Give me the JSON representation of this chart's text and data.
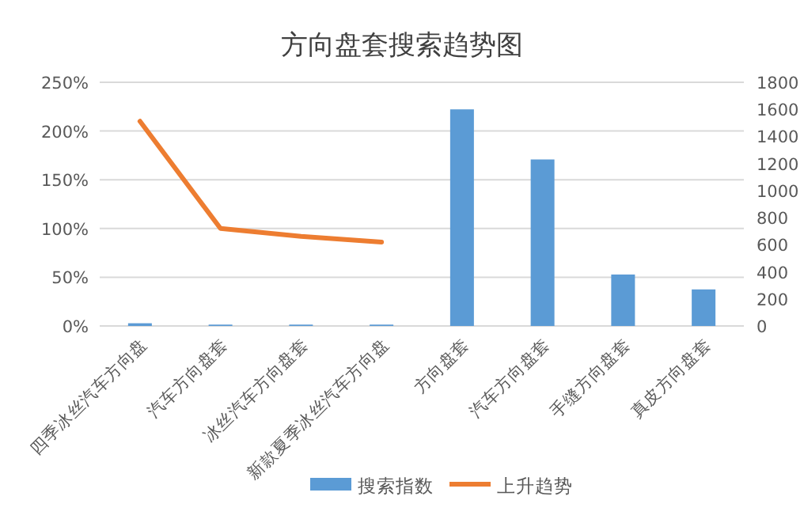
{
  "chart_data": {
    "type": "bar",
    "title": "方向盘套搜索趋势图",
    "categories": [
      "四季冰丝汽车方向盘",
      "汽车方向盘套",
      "冰丝汽车方向盘套",
      "新款夏季冰丝汽车方向盘",
      "方向盘套",
      "汽车方向盘套",
      "手缝方向盘套",
      "真皮方向盘套"
    ],
    "series": [
      {
        "name": "搜索指数",
        "axis": "y2",
        "color": "#5b9bd5",
        "values": [
          20,
          10,
          10,
          10,
          1600,
          1230,
          380,
          270
        ]
      },
      {
        "name": "上升趋势",
        "type": "line",
        "axis": "y",
        "color": "#ed7d31",
        "values": [
          210,
          100,
          92,
          86,
          null,
          null,
          null,
          null
        ]
      }
    ],
    "ylim": [
      0,
      250
    ],
    "yticks": [
      {
        "value": 0,
        "label": "0%"
      },
      {
        "value": 50,
        "label": "50%"
      },
      {
        "value": 100,
        "label": "100%"
      },
      {
        "value": 150,
        "label": "150%"
      },
      {
        "value": 200,
        "label": "200%"
      },
      {
        "value": 250,
        "label": "250%"
      }
    ],
    "y2lim": [
      0,
      1800
    ],
    "y2ticks": [
      0,
      200,
      400,
      600,
      800,
      1000,
      1200,
      1400,
      1600,
      1800
    ],
    "grid": "y",
    "legend": "bottom"
  }
}
